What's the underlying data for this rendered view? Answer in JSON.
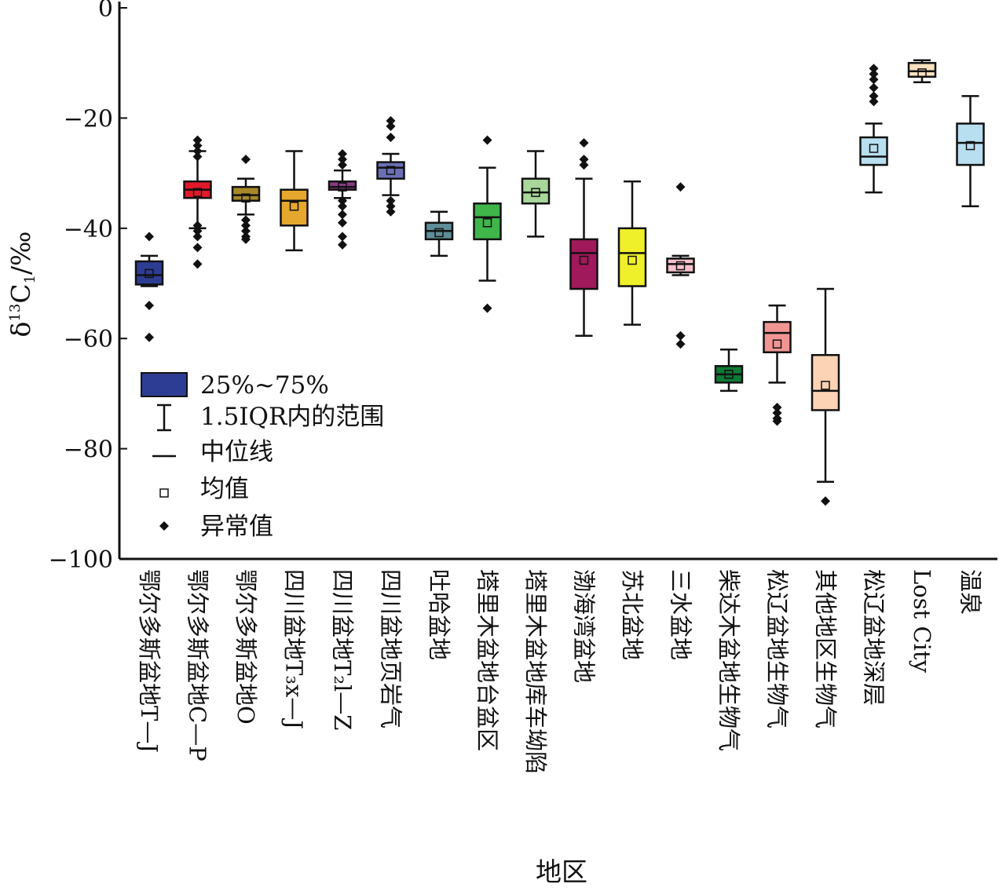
{
  "chart_data": {
    "type": "box",
    "title": "",
    "xlabel": "地区",
    "ylabel": "δ¹³C₁/‰",
    "ylabel_parts": {
      "main": "δ",
      "sup": "13",
      "letter": "C",
      "sub": "1",
      "unit": "/‰"
    },
    "ylim": [
      -100,
      0
    ],
    "yticks": [
      0,
      -20,
      -40,
      -60,
      -80,
      -100
    ],
    "ytick_labels": [
      "0",
      "−20",
      "−40",
      "−60",
      "−80",
      "−100"
    ],
    "grid": false,
    "legend_position": "left-center",
    "legend": [
      {
        "kind": "box",
        "label": "25%~75%",
        "color": "#2e3d94"
      },
      {
        "kind": "whisker",
        "label": "1.5IQR内的范围"
      },
      {
        "kind": "median",
        "label": "中位线"
      },
      {
        "kind": "mean",
        "label": "均值"
      },
      {
        "kind": "outlier",
        "label": "异常值"
      }
    ],
    "categories": [
      {
        "label": "鄂尔多斯盆地T—J",
        "color": "#2e3d94",
        "whislo": -50.5,
        "q1": -50.2,
        "med": -48.5,
        "q3": -46.0,
        "whishi": -45.0,
        "mean": -48.2,
        "fliers": [
          -41.5,
          -54.0,
          -59.8
        ]
      },
      {
        "label": "鄂尔多斯盆地C—P",
        "color": "#e0192b",
        "whislo": -40.0,
        "q1": -34.5,
        "med": -33.0,
        "q3": -31.5,
        "whishi": -26.0,
        "mean": -33.5,
        "fliers": [
          -24.0,
          -25.0,
          -26.0,
          -27.0,
          -39.5,
          -40.5,
          -41.5,
          -43.5,
          -46.5
        ]
      },
      {
        "label": "鄂尔多斯盆地O",
        "color": "#a7892a",
        "whislo": -37.5,
        "q1": -35.0,
        "med": -34.0,
        "q3": -32.5,
        "whishi": -31.0,
        "mean": -34.5,
        "fliers": [
          -27.5,
          -38.5,
          -39.5,
          -40.5,
          -41.5,
          -42.0
        ]
      },
      {
        "label": "四川盆地T₃x—J",
        "color": "#e5a72d",
        "whislo": -44.0,
        "q1": -39.5,
        "med": -35.0,
        "q3": -33.0,
        "whishi": -26.0,
        "mean": -36.0,
        "fliers": []
      },
      {
        "label": "四川盆地T₂l—Z",
        "color": "#8a3c86",
        "whislo": -34.5,
        "q1": -33.0,
        "med": -32.5,
        "q3": -31.5,
        "whishi": -29.5,
        "mean": -32.5,
        "fliers": [
          -26.5,
          -27.5,
          -28.5,
          -35.0,
          -36.0,
          -37.5,
          -39.0,
          -41.5,
          -43.0
        ]
      },
      {
        "label": "四川盆地页岩气",
        "color": "#6b70b5",
        "whislo": -34.0,
        "q1": -31.0,
        "med": -29.0,
        "q3": -28.0,
        "whishi": -26.5,
        "mean": -29.5,
        "fliers": [
          -20.5,
          -21.5,
          -23.5,
          -35.0,
          -36.0,
          -37.0
        ]
      },
      {
        "label": "吐哈盆地",
        "color": "#5e8e97",
        "whislo": -45.0,
        "q1": -42.0,
        "med": -40.5,
        "q3": -39.0,
        "whishi": -37.0,
        "mean": -40.8,
        "fliers": []
      },
      {
        "label": "塔里木盆地台盆区",
        "color": "#3fb54a",
        "whislo": -49.5,
        "q1": -42.0,
        "med": -38.0,
        "q3": -35.5,
        "whishi": -29.0,
        "mean": -39.0,
        "fliers": [
          -24.0,
          -54.5
        ]
      },
      {
        "label": "塔里木盆地库车坳陷",
        "color": "#a9d69b",
        "whislo": -41.5,
        "q1": -35.5,
        "med": -33.5,
        "q3": -31.0,
        "whishi": -26.0,
        "mean": -33.5,
        "fliers": []
      },
      {
        "label": "渤海湾盆地",
        "color": "#a0195a",
        "whislo": -59.5,
        "q1": -51.0,
        "med": -44.5,
        "q3": -42.0,
        "whishi": -31.0,
        "mean": -45.8,
        "fliers": [
          -24.5,
          -27.5,
          -28.5
        ]
      },
      {
        "label": "苏北盆地",
        "color": "#eff029",
        "whislo": -57.5,
        "q1": -50.5,
        "med": -44.5,
        "q3": -40.0,
        "whishi": -31.5,
        "mean": -45.8,
        "fliers": []
      },
      {
        "label": "三水盆地",
        "color": "#f7c1cc",
        "whislo": -48.5,
        "q1": -48.0,
        "med": -46.5,
        "q3": -45.5,
        "whishi": -45.0,
        "mean": -46.8,
        "fliers": [
          -32.5,
          -59.5,
          -61.0
        ]
      },
      {
        "label": "柴达木盆地生物气",
        "color": "#0e7a36",
        "whislo": -69.5,
        "q1": -68.0,
        "med": -66.5,
        "q3": -65.0,
        "whishi": -62.0,
        "mean": -66.5,
        "fliers": []
      },
      {
        "label": "松辽盆地生物气",
        "color": "#f19594",
        "whislo": -68.0,
        "q1": -62.5,
        "med": -59.0,
        "q3": -57.0,
        "whishi": -54.0,
        "mean": -61.0,
        "fliers": [
          -72.5,
          -73.5,
          -74.5,
          -75.0
        ]
      },
      {
        "label": "其他地区生物气",
        "color": "#fdd3b5",
        "whislo": -86.0,
        "q1": -73.0,
        "med": -69.5,
        "q3": -63.0,
        "whishi": -51.0,
        "mean": -68.5,
        "fliers": [
          -89.5
        ]
      },
      {
        "label": "松辽盆地深层",
        "color": "#b8dff0",
        "whislo": -33.5,
        "q1": -28.5,
        "med": -27.0,
        "q3": -23.5,
        "whishi": -21.0,
        "mean": -25.5,
        "fliers": [
          -11.0,
          -12.0,
          -13.0,
          -14.5,
          -16.0,
          -17.0
        ]
      },
      {
        "label": "Lost City",
        "color": "#fbe0c0",
        "whislo": -13.5,
        "q1": -12.5,
        "med": -11.5,
        "q3": -10.0,
        "whishi": -9.5,
        "mean": -11.8,
        "fliers": []
      },
      {
        "label": "温泉",
        "color": "#b8dff0",
        "whislo": -36.0,
        "q1": -28.5,
        "med": -24.5,
        "q3": -21.0,
        "whishi": -16.0,
        "mean": -25.0,
        "fliers": []
      }
    ]
  }
}
